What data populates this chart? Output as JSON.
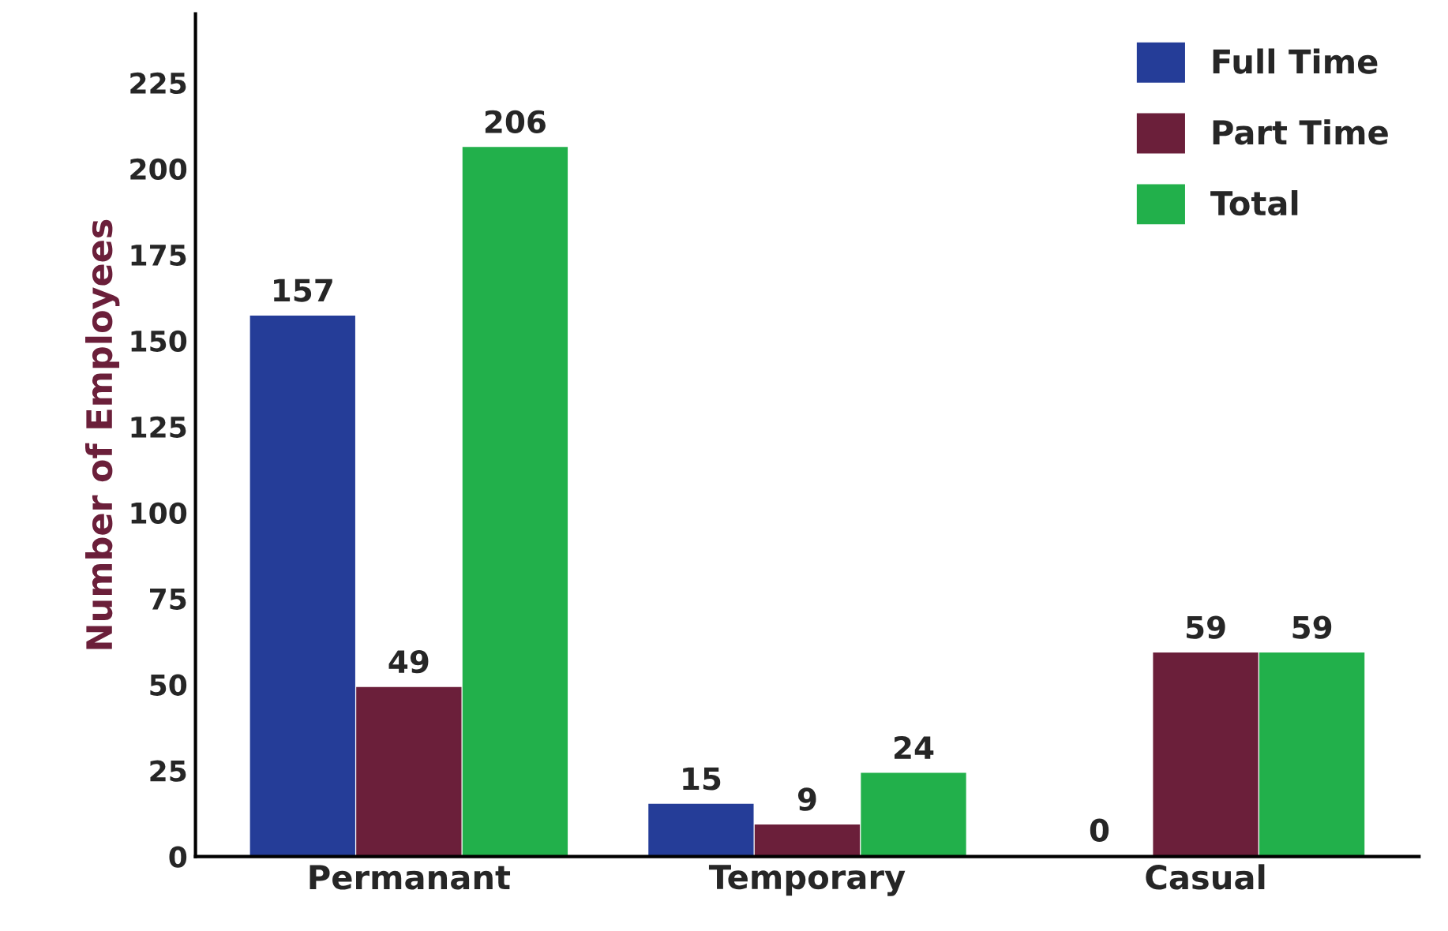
{
  "chart_data": {
    "type": "bar",
    "ylabel": "Number of Employees",
    "categories": [
      "Permanant",
      "Temporary",
      "Casual"
    ],
    "series": [
      {
        "name": "Full Time",
        "color": "#253d98",
        "values": [
          157,
          15,
          0
        ]
      },
      {
        "name": "Part Time",
        "color": "#6b1f3a",
        "values": [
          49,
          9,
          59
        ]
      },
      {
        "name": "Total",
        "color": "#22b04b",
        "values": [
          206,
          24,
          59
        ]
      }
    ],
    "ylim": [
      0,
      245
    ],
    "yticks": [
      0,
      25,
      50,
      75,
      100,
      125,
      150,
      175,
      200,
      225
    ],
    "data_labels": true,
    "legend": "top right",
    "grid": false
  }
}
